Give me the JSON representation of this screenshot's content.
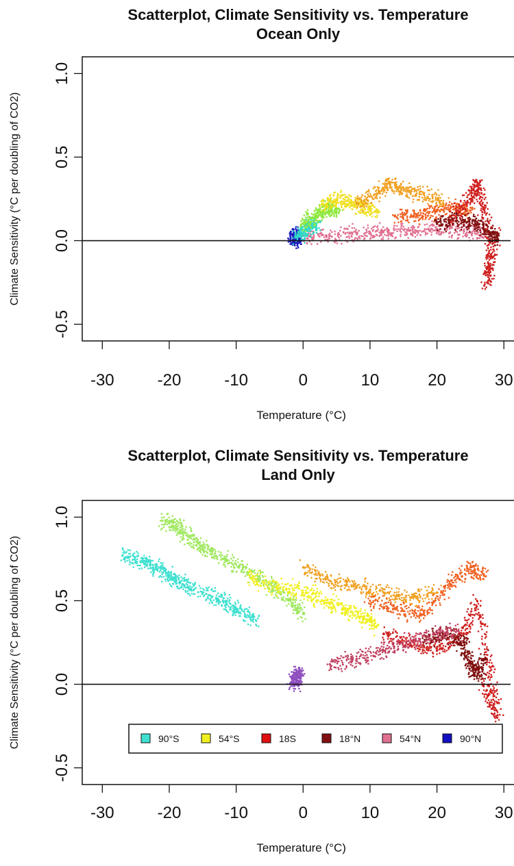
{
  "chart_data": [
    {
      "type": "scatter",
      "title": "Scatterplot, Climate Sensitivity vs. Temperature",
      "subtitle": "Ocean Only",
      "xlabel": "Temperature (°C)",
      "ylabel": "Climate Sensitivity (°C per doubling of CO2)",
      "xlim": [
        -33,
        31
      ],
      "ylim": [
        -0.6,
        1.1
      ],
      "xticks": [
        -30,
        -20,
        -10,
        0,
        10,
        20,
        30
      ],
      "xtick_labels": [
        "-30",
        "-20",
        "-10",
        "0",
        "10",
        "20",
        "30"
      ],
      "yticks": [
        -0.5,
        0.0,
        0.5,
        1.0
      ],
      "ytick_labels": [
        "-0.5",
        "0.0",
        "0.5",
        "1.0"
      ],
      "hline": 0.0,
      "grid": false,
      "series": [
        {
          "color": "#2020c0",
          "points": [
            [
              -1.5,
              0.0
            ],
            [
              -1.2,
              0.02
            ],
            [
              -1.0,
              0.01
            ],
            [
              -0.8,
              0.03
            ]
          ]
        },
        {
          "color": "#e07090",
          "points": [
            [
              0,
              0.03
            ],
            [
              4,
              0.03
            ],
            [
              8,
              0.04
            ],
            [
              12,
              0.05
            ],
            [
              16,
              0.06
            ],
            [
              20,
              0.07
            ],
            [
              24,
              0.06
            ],
            [
              27,
              0.04
            ]
          ]
        },
        {
          "color": "#30d8c8",
          "points": [
            [
              -1,
              0.02
            ],
            [
              0,
              0.06
            ],
            [
              1,
              0.09
            ],
            [
              2,
              0.1
            ]
          ]
        },
        {
          "color": "#90e840",
          "points": [
            [
              0,
              0.1
            ],
            [
              2,
              0.15
            ],
            [
              3,
              0.18
            ],
            [
              4,
              0.2
            ],
            [
              5,
              0.17
            ]
          ]
        },
        {
          "color": "#f0e020",
          "points": [
            [
              3,
              0.22
            ],
            [
              5,
              0.25
            ],
            [
              7,
              0.23
            ],
            [
              9,
              0.2
            ],
            [
              11,
              0.18
            ]
          ]
        },
        {
          "color": "#f0a020",
          "points": [
            [
              8,
              0.22
            ],
            [
              11,
              0.28
            ],
            [
              13,
              0.35
            ],
            [
              15,
              0.3
            ],
            [
              18,
              0.28
            ],
            [
              21,
              0.22
            ]
          ]
        },
        {
          "color": "#f06020",
          "points": [
            [
              14,
              0.14
            ],
            [
              17,
              0.15
            ],
            [
              20,
              0.18
            ],
            [
              23,
              0.2
            ],
            [
              25,
              0.18
            ]
          ]
        },
        {
          "color": "#d02020",
          "points": [
            [
              22,
              0.12
            ],
            [
              25,
              0.25
            ],
            [
              26,
              0.35
            ],
            [
              27,
              0.2
            ],
            [
              28,
              -0.1
            ],
            [
              27.5,
              -0.25
            ],
            [
              29,
              0.05
            ]
          ]
        },
        {
          "color": "#801010",
          "points": [
            [
              20,
              0.1
            ],
            [
              23,
              0.12
            ],
            [
              26,
              0.1
            ],
            [
              28,
              0.05
            ],
            [
              29,
              0.0
            ]
          ]
        }
      ]
    },
    {
      "type": "scatter",
      "title": "Scatterplot, Climate Sensitivity vs. Temperature",
      "subtitle": "Land Only",
      "xlabel": "Temperature (°C)",
      "ylabel": "Climate Sensitivity (°C per doubling of CO2)",
      "xlim": [
        -33,
        31
      ],
      "ylim": [
        -0.6,
        1.1
      ],
      "xticks": [
        -30,
        -20,
        -10,
        0,
        10,
        20,
        30
      ],
      "xtick_labels": [
        "-30",
        "-20",
        "-10",
        "0",
        "10",
        "20",
        "30"
      ],
      "yticks": [
        -0.5,
        0.0,
        0.5,
        1.0
      ],
      "ytick_labels": [
        "-0.5",
        "0.0",
        "0.5",
        "1.0"
      ],
      "hline": 0.0,
      "grid": false,
      "legend": {
        "position": "bottom-right",
        "entries": [
          {
            "label": "90°S",
            "color": "#40e0d0"
          },
          {
            "label": "54°S",
            "color": "#f0f020"
          },
          {
            "label": "18S",
            "color": "#e01010"
          },
          {
            "label": "18°N",
            "color": "#801010"
          },
          {
            "label": "54°N",
            "color": "#e07090"
          },
          {
            "label": "90°N",
            "color": "#1010c0"
          }
        ]
      },
      "series": [
        {
          "color": "#40e0d0",
          "points": [
            [
              -27,
              0.77
            ],
            [
              -24,
              0.74
            ],
            [
              -22,
              0.7
            ],
            [
              -20,
              0.65
            ],
            [
              -18,
              0.6
            ],
            [
              -15,
              0.55
            ],
            [
              -12,
              0.5
            ],
            [
              -10,
              0.45
            ],
            [
              -7,
              0.38
            ]
          ]
        },
        {
          "color": "#a0e860",
          "points": [
            [
              -21,
              0.98
            ],
            [
              -19,
              0.95
            ],
            [
              -17,
              0.88
            ],
            [
              -15,
              0.82
            ],
            [
              -12,
              0.75
            ],
            [
              -9,
              0.7
            ],
            [
              -5,
              0.6
            ],
            [
              -2,
              0.5
            ],
            [
              0,
              0.42
            ]
          ]
        },
        {
          "color": "#f0f020",
          "points": [
            [
              -8,
              0.65
            ],
            [
              -4,
              0.58
            ],
            [
              0,
              0.55
            ],
            [
              3,
              0.5
            ],
            [
              6,
              0.45
            ],
            [
              9,
              0.4
            ],
            [
              11,
              0.35
            ]
          ]
        },
        {
          "color": "#f0a020",
          "points": [
            [
              0,
              0.7
            ],
            [
              4,
              0.62
            ],
            [
              8,
              0.58
            ],
            [
              12,
              0.55
            ],
            [
              16,
              0.52
            ],
            [
              20,
              0.55
            ]
          ]
        },
        {
          "color": "#f06020",
          "points": [
            [
              10,
              0.5
            ],
            [
              14,
              0.45
            ],
            [
              18,
              0.42
            ],
            [
              22,
              0.6
            ],
            [
              25,
              0.7
            ],
            [
              27,
              0.65
            ]
          ]
        },
        {
          "color": "#d02020",
          "points": [
            [
              12,
              0.3
            ],
            [
              16,
              0.25
            ],
            [
              20,
              0.2
            ],
            [
              24,
              0.3
            ],
            [
              26,
              0.5
            ],
            [
              28,
              0.1
            ],
            [
              29,
              -0.2
            ],
            [
              27,
              0.0
            ]
          ]
        },
        {
          "color": "#801010",
          "points": [
            [
              18,
              0.25
            ],
            [
              21,
              0.3
            ],
            [
              24,
              0.25
            ],
            [
              25,
              0.12
            ],
            [
              26,
              0.05
            ],
            [
              27,
              0.15
            ]
          ]
        },
        {
          "color": "#c04060",
          "points": [
            [
              4,
              0.12
            ],
            [
              8,
              0.15
            ],
            [
              12,
              0.2
            ],
            [
              16,
              0.25
            ],
            [
              20,
              0.3
            ],
            [
              23,
              0.32
            ]
          ]
        },
        {
          "color": "#9050c0",
          "points": [
            [
              -1.5,
              0.0
            ],
            [
              -1.2,
              0.03
            ],
            [
              -0.8,
              0.05
            ],
            [
              -0.5,
              0.06
            ]
          ]
        }
      ]
    }
  ]
}
